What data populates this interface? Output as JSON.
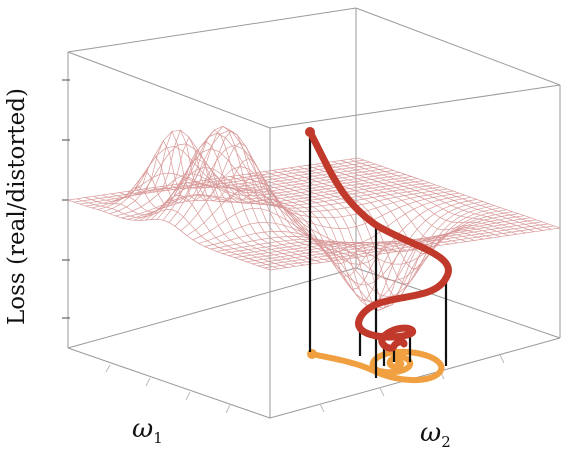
{
  "figure": {
    "y_axis_label": "Loss (real/distorted)",
    "x_axis_labels": [
      {
        "symbol": "ω",
        "subscript": "1"
      },
      {
        "symbol": "ω",
        "subscript": "2"
      }
    ]
  },
  "colors": {
    "surface_mesh": "#d99a9a",
    "box_lines": "#999999",
    "trajectory_3d": "#c0392b",
    "trajectory_projection": "#f0a040",
    "drop_lines": "#111111"
  }
}
